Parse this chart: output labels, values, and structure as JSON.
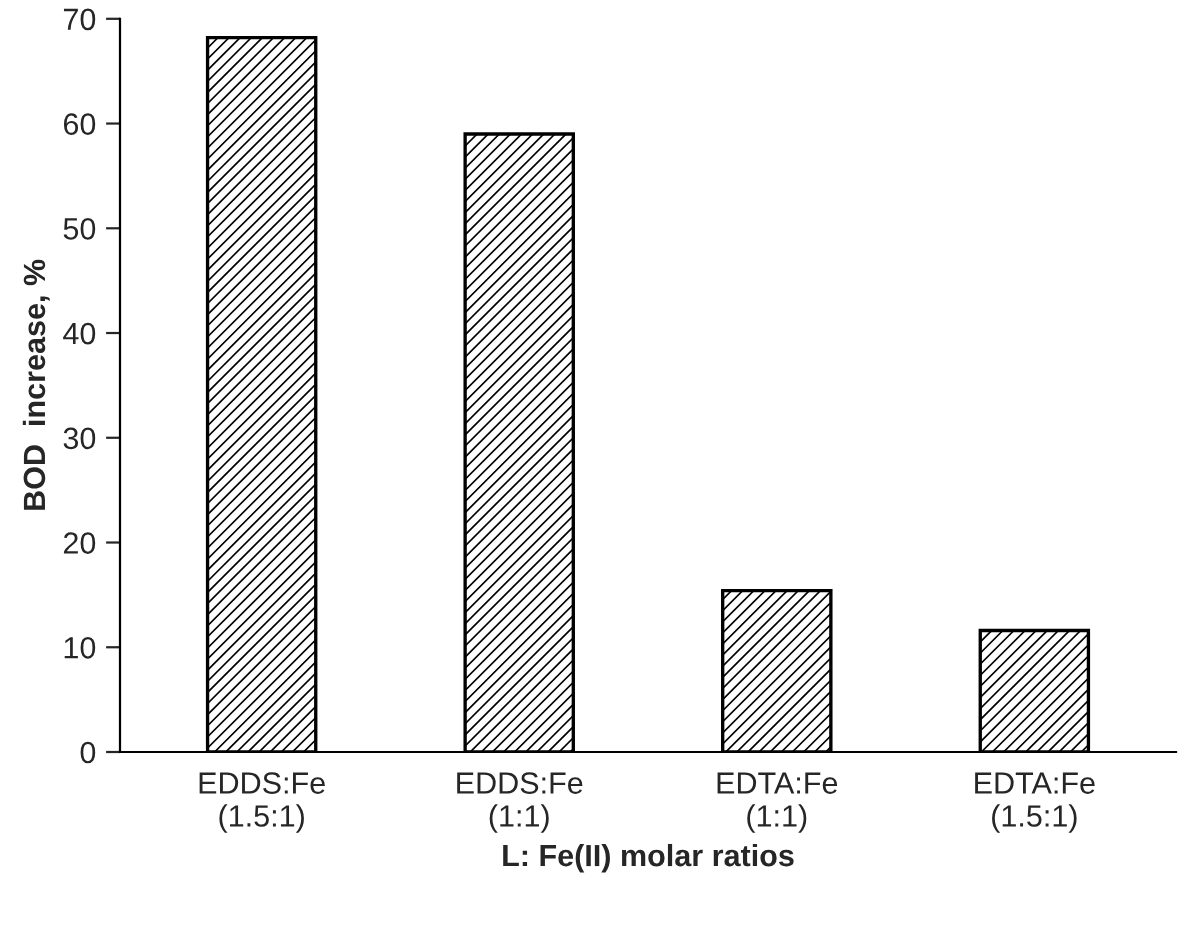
{
  "chart_data": {
    "type": "bar",
    "xlabel": "L: Fe(II) molar ratios",
    "ylabel": "BOD  increase, %",
    "categories": [
      "EDDS:Fe\n(1.5:1)",
      "EDDS:Fe\n(1:1)",
      "EDTA:Fe\n(1:1)",
      "EDTA:Fe\n(1.5:1)"
    ],
    "values": [
      68.2,
      59.0,
      15.4,
      11.6
    ],
    "ylim": [
      0,
      70
    ],
    "yticks": [
      0,
      10,
      20,
      30,
      40,
      50,
      60,
      70
    ],
    "grid": false,
    "legend": false
  }
}
